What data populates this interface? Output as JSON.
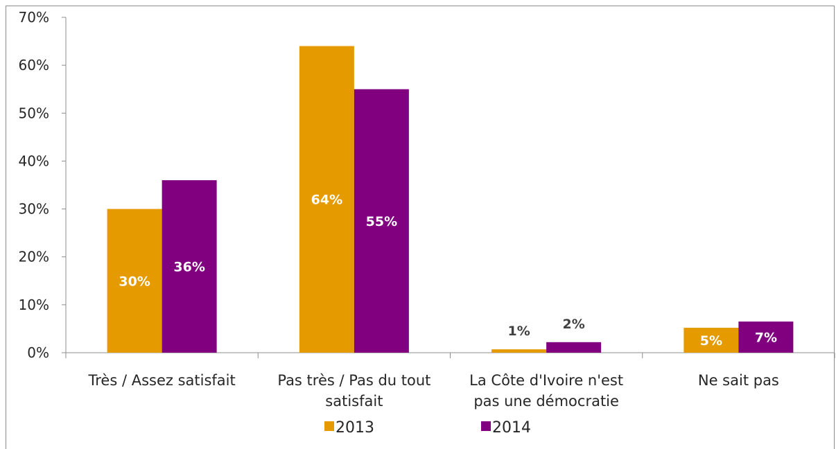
{
  "chart_data": {
    "type": "bar",
    "categories": [
      [
        "Très / Assez satisfait"
      ],
      [
        "Pas très / Pas du tout",
        "satisfait"
      ],
      [
        "La Côte d'Ivoire n'est",
        "pas une démocratie"
      ],
      [
        "Ne sait pas"
      ]
    ],
    "series": [
      {
        "name": "2013",
        "color": "#E59A00",
        "values": [
          30,
          64,
          0.7,
          5.2
        ],
        "labels": [
          "30%",
          "64%",
          "1%",
          "5%"
        ]
      },
      {
        "name": "2014",
        "color": "#800080",
        "values": [
          36,
          55,
          2.2,
          6.5
        ],
        "labels": [
          "36%",
          "55%",
          "2%",
          "7%"
        ]
      }
    ],
    "yticks": [
      "0%",
      "10%",
      "20%",
      "30%",
      "40%",
      "50%",
      "60%",
      "70%"
    ],
    "ylim": [
      0,
      70
    ],
    "legend_position": "bottom",
    "grid": false
  }
}
